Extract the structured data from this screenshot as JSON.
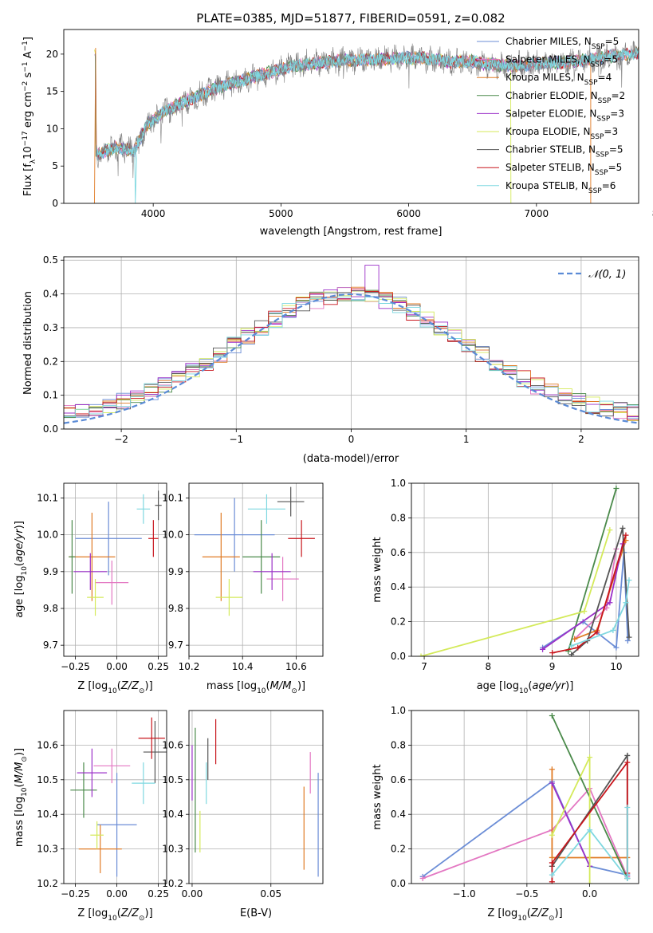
{
  "title": "PLATE=0385, MJD=51877, FIBERID=0591, z=0.082",
  "colors": {
    "Chabrier MILES": "#6b8dd6",
    "Salpeter MILES": "#e377c2",
    "Kroupa MILES": "#e07b25",
    "Chabrier ELODIE": "#4a8a4a",
    "Salpeter ELODIE": "#9b30c8",
    "Kroupa ELODIE": "#d4ea5a",
    "Chabrier STELIB": "#555555",
    "Salpeter STELIB": "#c8161d",
    "Kroupa STELIB": "#7fd8e0"
  },
  "chart_data": [
    {
      "id": "spectrum",
      "type": "line",
      "title": "PLATE=0385, MJD=51877, FIBERID=0591, z=0.082",
      "xlabel": "wavelength [Angstrom, rest frame]",
      "ylabel": "Flux [f_λ 10^-17 erg cm^-2 s^-1 A^-1]",
      "xlim": [
        3300,
        7800
      ],
      "ylim": [
        0,
        23.3
      ],
      "xticks": [
        4000,
        5000,
        6000,
        7000,
        8000
      ],
      "yticks": [
        0,
        5,
        10,
        15,
        20
      ],
      "grid": false,
      "legend_position": "right",
      "series": [
        {
          "name": "Chabrier MILES, N_SSP=5",
          "label_main": "Chabrier MILES, N",
          "label_sub": "SSP",
          "label_tail": "=5"
        },
        {
          "name": "Salpeter MILES, N_SSP=5",
          "label_main": "Salpeter MILES, N",
          "label_sub": "SSP",
          "label_tail": "=5"
        },
        {
          "name": "Kroupa MILES, N_SSP=4",
          "label_main": "Kroupa MILES, N",
          "label_sub": "SSP",
          "label_tail": "=4"
        },
        {
          "name": "Chabrier ELODIE, N_SSP=2",
          "label_main": "Chabrier ELODIE, N",
          "label_sub": "SSP",
          "label_tail": "=2"
        },
        {
          "name": "Salpeter ELODIE, N_SSP=3",
          "label_main": "Salpeter ELODIE, N",
          "label_sub": "SSP",
          "label_tail": "=3"
        },
        {
          "name": "Kroupa ELODIE, N_SSP=3",
          "label_main": "Kroupa ELODIE, N",
          "label_sub": "SSP",
          "label_tail": "=3"
        },
        {
          "name": "Chabrier STELIB, N_SSP=5",
          "label_main": "Chabrier STELIB, N",
          "label_sub": "SSP",
          "label_tail": "=5"
        },
        {
          "name": "Salpeter STELIB, N_SSP=5",
          "label_main": "Salpeter STELIB, N",
          "label_sub": "SSP",
          "label_tail": "=5"
        },
        {
          "name": "Kroupa STELIB, N_SSP=6",
          "label_main": "Kroupa STELIB, N",
          "label_sub": "SSP",
          "label_tail": "=6"
        }
      ],
      "continuum": [
        [
          3550,
          6.5
        ],
        [
          3700,
          7.5
        ],
        [
          3850,
          7.0
        ],
        [
          3950,
          10.5
        ],
        [
          4100,
          12.5
        ],
        [
          4300,
          14.0
        ],
        [
          4500,
          15.5
        ],
        [
          4700,
          16.5
        ],
        [
          4900,
          17.5
        ],
        [
          5100,
          18.5
        ],
        [
          5300,
          18.8
        ],
        [
          5500,
          19.2
        ],
        [
          5700,
          19.2
        ],
        [
          5900,
          19.5
        ],
        [
          6100,
          19.5
        ],
        [
          6300,
          19.0
        ],
        [
          6500,
          19.0
        ],
        [
          6700,
          18.5
        ],
        [
          6900,
          18.5
        ],
        [
          7100,
          18.8
        ],
        [
          7300,
          19.0
        ],
        [
          7500,
          19.5
        ],
        [
          7700,
          20.0
        ],
        [
          7900,
          20.3
        ],
        [
          8100,
          20.5
        ],
        [
          8300,
          20.5
        ]
      ]
    },
    {
      "id": "residuals",
      "type": "line",
      "xlabel": "(data-model)/error",
      "ylabel": "Normed distribution",
      "xlim": [
        -2.5,
        2.5
      ],
      "ylim": [
        0,
        0.51
      ],
      "xticks": [
        -2,
        -1,
        0,
        1,
        2
      ],
      "yticks": [
        0.0,
        0.1,
        0.2,
        0.3,
        0.4,
        0.5
      ],
      "grid": true,
      "legend_position": "top-right",
      "series": [
        {
          "name": "N(0,1)",
          "label": "𝒩(0, 1)",
          "style": "dashed",
          "color": "#5b8bd6"
        }
      ]
    },
    {
      "id": "age-vs-Z",
      "type": "scatter",
      "xlabel": "Z [log10(Z/Z⊙)]",
      "ylabel": "age [log10(age/yr)]",
      "xlim": [
        -0.32,
        0.3
      ],
      "ylim": [
        9.67,
        10.14
      ],
      "xticks": [
        -0.25,
        0.0,
        0.25
      ],
      "yticks": [
        9.7,
        9.8,
        9.9,
        10.0,
        10.1
      ],
      "grid": true,
      "points": [
        {
          "series": "Chabrier MILES",
          "x": -0.05,
          "xerr": 0.2,
          "y": 9.99,
          "yerr": 0.1
        },
        {
          "series": "Salpeter MILES",
          "x": -0.03,
          "xerr": 0.1,
          "y": 9.87,
          "yerr": 0.06
        },
        {
          "series": "Kroupa MILES",
          "x": -0.15,
          "xerr": 0.14,
          "y": 9.94,
          "yerr": 0.12
        },
        {
          "series": "Chabrier ELODIE",
          "x": -0.27,
          "xerr": 0.02,
          "y": 9.94,
          "yerr": 0.1
        },
        {
          "series": "Salpeter ELODIE",
          "x": -0.16,
          "xerr": 0.1,
          "y": 9.9,
          "yerr": 0.05
        },
        {
          "series": "Kroupa ELODIE",
          "x": -0.13,
          "xerr": 0.05,
          "y": 9.83,
          "yerr": 0.05
        },
        {
          "series": "Chabrier STELIB",
          "x": 0.25,
          "xerr": 0.02,
          "y": 10.08,
          "yerr": 0.04
        },
        {
          "series": "Salpeter STELIB",
          "x": 0.22,
          "xerr": 0.03,
          "y": 9.99,
          "yerr": 0.05
        },
        {
          "series": "Kroupa STELIB",
          "x": 0.16,
          "xerr": 0.04,
          "y": 10.07,
          "yerr": 0.04
        }
      ]
    },
    {
      "id": "age-vs-mass",
      "type": "scatter",
      "xlabel": "mass [log10(M/M⊙)]",
      "ylabel": "",
      "xlim": [
        10.2,
        10.7
      ],
      "ylim": [
        9.67,
        10.14
      ],
      "xticks": [
        10.2,
        10.4,
        10.6
      ],
      "yticks": [
        9.7,
        9.8,
        9.9,
        10.0,
        10.1
      ],
      "grid": true,
      "points": [
        {
          "series": "Chabrier MILES",
          "x": 10.37,
          "xerr": 0.15,
          "y": 10.0,
          "yerr": 0.1
        },
        {
          "series": "Salpeter MILES",
          "x": 10.55,
          "xerr": 0.06,
          "y": 9.88,
          "yerr": 0.06
        },
        {
          "series": "Kroupa MILES",
          "x": 10.32,
          "xerr": 0.07,
          "y": 9.94,
          "yerr": 0.12
        },
        {
          "series": "Chabrier ELODIE",
          "x": 10.47,
          "xerr": 0.07,
          "y": 9.94,
          "yerr": 0.1
        },
        {
          "series": "Salpeter ELODIE",
          "x": 10.51,
          "xerr": 0.07,
          "y": 9.9,
          "yerr": 0.05
        },
        {
          "series": "Kroupa ELODIE",
          "x": 10.35,
          "xerr": 0.05,
          "y": 9.83,
          "yerr": 0.05
        },
        {
          "series": "Chabrier STELIB",
          "x": 10.58,
          "xerr": 0.05,
          "y": 10.09,
          "yerr": 0.04
        },
        {
          "series": "Salpeter STELIB",
          "x": 10.62,
          "xerr": 0.05,
          "y": 9.99,
          "yerr": 0.05
        },
        {
          "series": "Kroupa STELIB",
          "x": 10.49,
          "xerr": 0.07,
          "y": 10.07,
          "yerr": 0.04
        }
      ]
    },
    {
      "id": "weight-vs-age",
      "type": "line",
      "xlabel": "age [log10(age/yr)]",
      "ylabel": "mass weight",
      "xlim": [
        6.8,
        10.35
      ],
      "ylim": [
        0,
        1.0
      ],
      "xticks": [
        7,
        8,
        9,
        10
      ],
      "yticks": [
        0.0,
        0.2,
        0.4,
        0.6,
        0.8,
        1.0
      ],
      "grid": true,
      "series": [
        {
          "name": "Chabrier MILES",
          "points": [
            [
              8.85,
              0.05
            ],
            [
              9.48,
              0.2
            ],
            [
              10.0,
              0.05
            ],
            [
              10.12,
              0.6
            ],
            [
              10.18,
              0.09
            ]
          ]
        },
        {
          "name": "Salpeter MILES",
          "points": [
            [
              9.35,
              0.1
            ],
            [
              9.85,
              0.28
            ],
            [
              10.0,
              0.62
            ]
          ]
        },
        {
          "name": "Kroupa MILES",
          "points": [
            [
              9.35,
              0.1
            ],
            [
              9.7,
              0.15
            ],
            [
              10.15,
              0.67
            ]
          ]
        },
        {
          "name": "Chabrier ELODIE",
          "points": [
            [
              9.25,
              0.03
            ],
            [
              10.0,
              0.97
            ]
          ]
        },
        {
          "name": "Salpeter ELODIE",
          "points": [
            [
              8.85,
              0.04
            ],
            [
              9.9,
              0.31
            ],
            [
              10.1,
              0.65
            ]
          ]
        },
        {
          "name": "Kroupa ELODIE",
          "points": [
            [
              6.95,
              0.0
            ],
            [
              9.5,
              0.26
            ],
            [
              9.9,
              0.73
            ]
          ]
        },
        {
          "name": "Chabrier STELIB",
          "points": [
            [
              9.3,
              0.01
            ],
            [
              9.55,
              0.09
            ],
            [
              10.1,
              0.74
            ],
            [
              10.2,
              0.11
            ]
          ]
        },
        {
          "name": "Salpeter STELIB",
          "points": [
            [
              9.0,
              0.02
            ],
            [
              9.4,
              0.05
            ],
            [
              9.7,
              0.14
            ],
            [
              10.15,
              0.7
            ]
          ]
        },
        {
          "name": "Kroupa STELIB",
          "points": [
            [
              9.3,
              0.06
            ],
            [
              9.95,
              0.15
            ],
            [
              10.15,
              0.31
            ],
            [
              10.2,
              0.44
            ]
          ]
        }
      ]
    },
    {
      "id": "mass-vs-Z",
      "type": "scatter",
      "xlabel": "Z [log10(Z/Z⊙)]",
      "ylabel": "mass [log10(M/M⊙)]",
      "xlim": [
        -0.32,
        0.3
      ],
      "ylim": [
        10.2,
        10.7
      ],
      "xticks": [
        -0.25,
        0.0,
        0.25
      ],
      "yticks": [
        10.2,
        10.3,
        10.4,
        10.5,
        10.6
      ],
      "grid": true,
      "points": [
        {
          "series": "Chabrier MILES",
          "x": 0.0,
          "xerr": 0.12,
          "y": 10.37,
          "yerr": 0.15
        },
        {
          "series": "Salpeter MILES",
          "x": -0.03,
          "xerr": 0.11,
          "y": 10.54,
          "yerr": 0.05
        },
        {
          "series": "Kroupa MILES",
          "x": -0.1,
          "xerr": 0.13,
          "y": 10.3,
          "yerr": 0.07
        },
        {
          "series": "Chabrier ELODIE",
          "x": -0.2,
          "xerr": 0.08,
          "y": 10.47,
          "yerr": 0.08
        },
        {
          "series": "Salpeter ELODIE",
          "x": -0.15,
          "xerr": 0.09,
          "y": 10.52,
          "yerr": 0.07
        },
        {
          "series": "Kroupa ELODIE",
          "x": -0.12,
          "xerr": 0.04,
          "y": 10.34,
          "yerr": 0.04
        },
        {
          "series": "Chabrier STELIB",
          "x": 0.23,
          "xerr": 0.07,
          "y": 10.58,
          "yerr": 0.09
        },
        {
          "series": "Salpeter STELIB",
          "x": 0.21,
          "xerr": 0.08,
          "y": 10.62,
          "yerr": 0.06
        },
        {
          "series": "Kroupa STELIB",
          "x": 0.16,
          "xerr": 0.07,
          "y": 10.49,
          "yerr": 0.06
        }
      ]
    },
    {
      "id": "mass-vs-ebv",
      "type": "scatter",
      "xlabel": "E(B-V)",
      "ylabel": "",
      "xlim": [
        -0.002,
        0.083
      ],
      "ylim": [
        10.2,
        10.7
      ],
      "xticks": [
        0.0,
        0.05
      ],
      "yticks": [
        10.2,
        10.3,
        10.4,
        10.5,
        10.6
      ],
      "grid": true,
      "points": [
        {
          "series": "Chabrier MILES",
          "x": 0.08,
          "xerr": 0,
          "y": 10.37,
          "yerr": 0.15
        },
        {
          "series": "Salpeter MILES",
          "x": 0.075,
          "xerr": 0,
          "y": 10.52,
          "yerr": 0.06
        },
        {
          "series": "Kroupa MILES",
          "x": 0.071,
          "xerr": 0,
          "y": 10.36,
          "yerr": 0.12
        },
        {
          "series": "Chabrier ELODIE",
          "x": 0.002,
          "xerr": 0,
          "y": 10.47,
          "yerr": 0.18
        },
        {
          "series": "Salpeter ELODIE",
          "x": 0.0,
          "xerr": 0,
          "y": 10.52,
          "yerr": 0.08
        },
        {
          "series": "Kroupa ELODIE",
          "x": 0.005,
          "xerr": 0,
          "y": 10.35,
          "yerr": 0.06
        },
        {
          "series": "Chabrier STELIB",
          "x": 0.01,
          "xerr": 0,
          "y": 10.56,
          "yerr": 0.06
        },
        {
          "series": "Salpeter STELIB",
          "x": 0.015,
          "xerr": 0,
          "y": 10.61,
          "yerr": 0.065
        },
        {
          "series": "Kroupa STELIB",
          "x": 0.009,
          "xerr": 0,
          "y": 10.49,
          "yerr": 0.06
        }
      ]
    },
    {
      "id": "weight-vs-Z",
      "type": "line",
      "xlabel": "Z [log10(Z/Z⊙)]",
      "ylabel": "mass weight",
      "xlim": [
        -1.42,
        0.39
      ],
      "ylim": [
        0,
        1.0
      ],
      "xticks": [
        -1.0,
        -0.5,
        0.0
      ],
      "yticks": [
        0.0,
        0.2,
        0.4,
        0.6,
        0.8,
        1.0
      ],
      "grid": true,
      "series": [
        {
          "name": "Chabrier MILES",
          "points": [
            [
              -1.33,
              0.04
            ],
            [
              -0.3,
              0.59
            ],
            [
              0.0,
              0.1
            ],
            [
              0.3,
              0.05
            ]
          ]
        },
        {
          "name": "Salpeter MILES",
          "points": [
            [
              -1.33,
              0.03
            ],
            [
              -0.3,
              0.31
            ],
            [
              0.0,
              0.55
            ],
            [
              0.3,
              0.04
            ]
          ]
        },
        {
          "name": "Kroupa MILES",
          "points": [
            [
              -0.3,
              0.66
            ],
            [
              -0.3,
              0.15
            ],
            [
              0.3,
              0.15
            ]
          ]
        },
        {
          "name": "Chabrier ELODIE",
          "points": [
            [
              -0.3,
              0.97
            ],
            [
              0.3,
              0.03
            ]
          ]
        },
        {
          "name": "Salpeter ELODIE",
          "points": [
            [
              -0.3,
              0.58
            ],
            [
              0.0,
              0.1
            ]
          ]
        },
        {
          "name": "Kroupa ELODIE",
          "points": [
            [
              -0.3,
              0.28
            ],
            [
              0.0,
              0.73
            ],
            [
              0.0,
              0.0
            ]
          ]
        },
        {
          "name": "Chabrier STELIB",
          "points": [
            [
              -0.3,
              0.1
            ],
            [
              0.3,
              0.74
            ],
            [
              0.3,
              0.03
            ]
          ]
        },
        {
          "name": "Salpeter STELIB",
          "points": [
            [
              -0.3,
              0.01
            ],
            [
              -0.3,
              0.12
            ],
            [
              0.3,
              0.7
            ],
            [
              0.3,
              0.06
            ]
          ]
        },
        {
          "name": "Kroupa STELIB",
          "points": [
            [
              -0.3,
              0.05
            ],
            [
              0.0,
              0.31
            ],
            [
              0.3,
              0.03
            ],
            [
              0.3,
              0.44
            ]
          ]
        }
      ]
    }
  ]
}
